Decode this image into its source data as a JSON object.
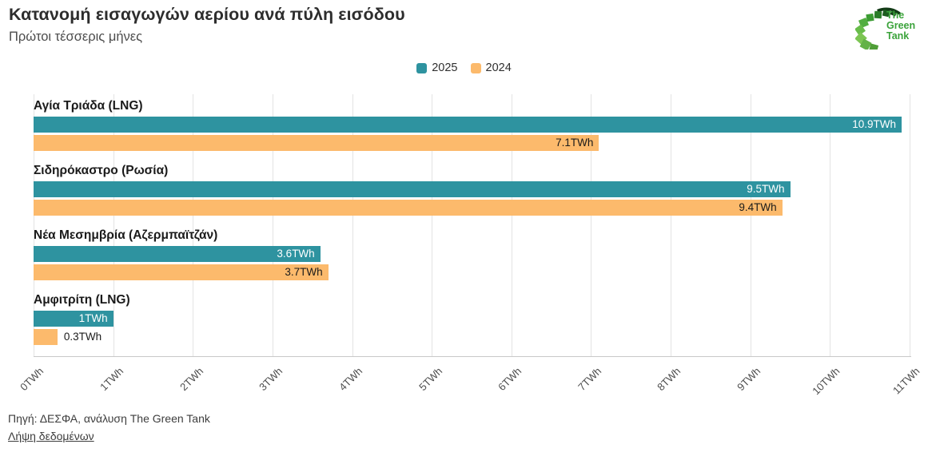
{
  "header": {
    "title": "Κατανομή εισαγωγών αερίου ανά πύλη εισόδου",
    "subtitle": "Πρώτοι τέσσερις μήνες"
  },
  "logo": {
    "alt": "The Green Tank",
    "line1": "The",
    "line2": "Green",
    "line3": "Tank",
    "text_color": "#3ba33b"
  },
  "chart_data": {
    "type": "bar",
    "orientation": "horizontal",
    "title": "Κατανομή εισαγωγών αερίου ανά πύλη εισόδου",
    "subtitle": "Πρώτοι τέσσερις μήνες",
    "unit": "TWh",
    "categories": [
      "Αγία Τριάδα (LNG)",
      "Σιδηρόκαστρο (Ρωσία)",
      "Νέα Μεσημβρία (Αζερμπαϊτζάν)",
      "Αμφιτρίτη (LNG)"
    ],
    "series": [
      {
        "name": "2025",
        "color": "#2e93a0",
        "label_color": "#ffffff",
        "values": [
          10.9,
          9.5,
          3.6,
          1.0
        ],
        "labels": [
          "10.9TWh",
          "9.5TWh",
          "3.6TWh",
          "1TWh"
        ]
      },
      {
        "name": "2024",
        "color": "#fcba6c",
        "label_color": "#1a1a1a",
        "values": [
          7.1,
          9.4,
          3.7,
          0.3
        ],
        "labels": [
          "7.1TWh",
          "9.4TWh",
          "3.7TWh",
          "0.3TWh"
        ]
      }
    ],
    "x_ticks": [
      "0TWh",
      "1TWh",
      "2TWh",
      "3TWh",
      "4TWh",
      "5TWh",
      "6TWh",
      "7TWh",
      "8TWh",
      "9TWh",
      "10TWh",
      "11TWh"
    ],
    "x_tick_values": [
      0,
      1,
      2,
      3,
      4,
      5,
      6,
      7,
      8,
      9,
      10,
      11
    ],
    "xlim": [
      0,
      11.02
    ],
    "grid": true,
    "gridline_color": "#e3e3e3",
    "legend_position": "top-center"
  },
  "footer": {
    "source": "Πηγή: ΔΕΣΦΑ, ανάλυση The Green Tank",
    "download_link": "Λήψη δεδομένων"
  }
}
